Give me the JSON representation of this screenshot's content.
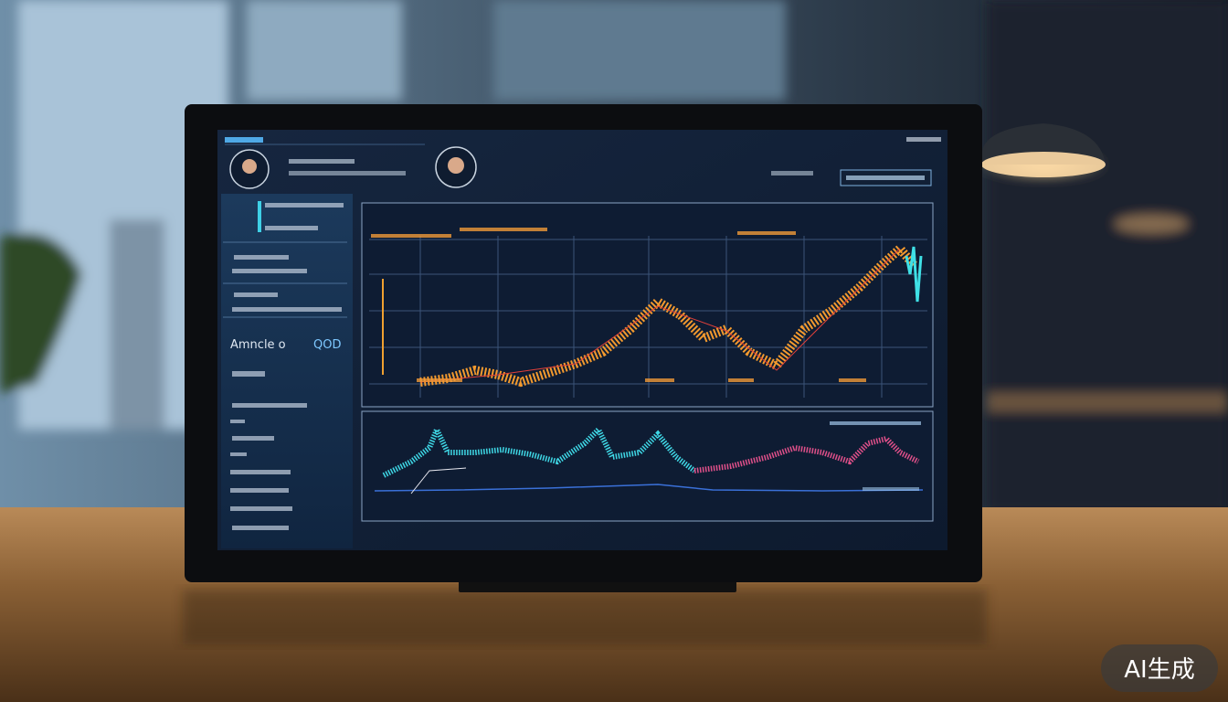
{
  "screen": {
    "sidebar": {
      "label": "Amncle o",
      "value": "QOD"
    }
  },
  "watermark": "AI生成"
}
